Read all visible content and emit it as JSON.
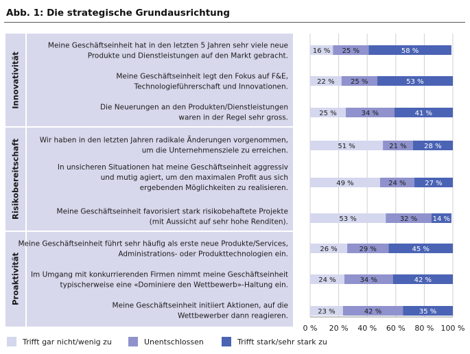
{
  "chart_data": {
    "type": "bar",
    "stacked": true,
    "orientation": "horizontal",
    "title": "Abb. 1: Die strategische Grundausrichtung",
    "xlim": [
      0,
      100
    ],
    "xtick_labels": [
      "0 %",
      "20 %",
      "40 %",
      "60 %",
      "80 %",
      "100 %"
    ],
    "groups": [
      {
        "name": "Innovativität",
        "row_count": 3
      },
      {
        "name": "Risikobereitschaft",
        "row_count": 3
      },
      {
        "name": "Proaktivität",
        "row_count": 3
      }
    ],
    "categories": [
      "Meine Geschäftseinheit hat in den letzten 5 Jahren sehr viele neue Produkte und Dienstleistungen auf den Markt gebracht.",
      "Meine Geschäftseinheit legt den Fokus auf F&E, Technologieführerschaft und Innovationen.",
      "Die Neuerungen an den Produkten/Dienstleistungen waren in der Regel sehr gross.",
      "Wir haben in den letzten Jahren radikale Änderungen vorgenommen, um die Unternehmensziele zu erreichen.",
      "In unsicheren Situationen hat meine Geschäftseinheit aggressiv und mutig agiert, um den maximalen Profit aus sich ergebenden Möglichkeiten zu realisieren.",
      "Meine Geschäftseinheit favorisiert stark risikobehaftete Projekte (mit Aussicht auf sehr hohe Renditen).",
      "Meine Geschäftseinheit führt sehr häufig als erste neue Produkte/Services, Administrations- oder Produkttechnologien ein.",
      "Im Umgang mit konkurrierenden Firmen nimmt meine Geschäftseinheit typischerweise eine «Dominiere den Wettbewerb»-Haltung ein.",
      "Meine Geschäftseinheit initiiert Aktionen, auf die Wettbewerber dann reagieren."
    ],
    "category_lines": [
      [
        "Meine Geschäftseinheit hat in den letzten 5 Jahren sehr viele neue",
        "Produkte und Dienstleistungen auf den Markt gebracht."
      ],
      [
        "Meine Geschäftseinheit legt den Fokus auf F&E,",
        "Technologieführerschaft und Innovationen."
      ],
      [
        "Die Neuerungen an den Produkten/Dienstleistungen",
        "waren in der Regel sehr gross."
      ],
      [
        "Wir haben in den letzten Jahren radikale Änderungen vorgenommen,",
        "um die Unternehmensziele zu erreichen."
      ],
      [
        "In unsicheren Situationen hat meine Geschäftseinheit aggressiv",
        "und mutig agiert, um den maximalen Profit aus sich",
        "ergebenden Möglichkeiten zu realisieren."
      ],
      [
        "Meine Geschäftseinheit favorisiert stark risikobehaftete Projekte",
        "(mit Aussicht auf sehr hohe Renditen)."
      ],
      [
        "Meine Geschäftseinheit führt sehr häufig als erste neue Produkte/Services,",
        "Administrations- oder Produkttechnologien ein."
      ],
      [
        "Im Umgang mit konkurrierenden Firmen nimmt meine Geschäftseinheit",
        "typischerweise eine «Dominiere den Wettbewerb»-Haltung ein."
      ],
      [
        "Meine Geschäftseinheit initiiert Aktionen, auf die",
        "Wettbewerber dann reagieren."
      ]
    ],
    "series": [
      {
        "name": "Trifft gar nicht/wenig zu",
        "color": "#d5d7ee",
        "label_color": "#1a1a1a",
        "values": [
          16,
          22,
          25,
          51,
          49,
          53,
          26,
          24,
          23
        ]
      },
      {
        "name": "Unentschlossen",
        "color": "#8f92cc",
        "label_color": "#1a1a1a",
        "values": [
          25,
          25,
          34,
          21,
          24,
          32,
          29,
          34,
          42
        ]
      },
      {
        "name": "Trifft stark/sehr stark zu",
        "color": "#4a63b4",
        "label_color": "#ffffff",
        "values": [
          58,
          53,
          41,
          28,
          27,
          14,
          45,
          42,
          35
        ]
      }
    ],
    "grid": true,
    "legend_position": "bottom"
  },
  "colors": {
    "panel_bg": "#d7d8ec",
    "separator": "#ffffff"
  }
}
